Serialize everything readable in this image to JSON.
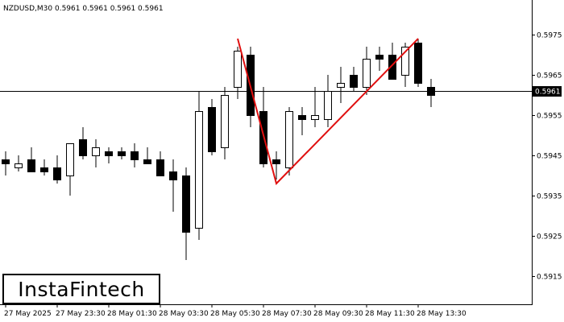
{
  "chart_data": {
    "type": "candlestick",
    "symbol_line": "NZDUSD,M30  0.5961 0.5961 0.5961 0.5961",
    "current_price": 0.5961,
    "current_price_label": "0.5961",
    "ylim": [
      0.5908,
      0.5983
    ],
    "yticks": [
      0.5975,
      0.5965,
      0.5955,
      0.5945,
      0.5935,
      0.5925,
      0.5915
    ],
    "ytick_labels": [
      "0.5975",
      "0.5965",
      "0.5955",
      "0.5945",
      "0.5935",
      "0.5925",
      "0.5915"
    ],
    "xtick_labels": [
      "27 May 2025",
      "27 May 23:30",
      "28 May 01:30",
      "28 May 03:30",
      "28 May 05:30",
      "28 May 07:30",
      "28 May 09:30",
      "28 May 11:30",
      "28 May 13:30"
    ],
    "xtick_bar_index": [
      0,
      4,
      8,
      12,
      16,
      20,
      24,
      28,
      32
    ],
    "candles": [
      [
        0.5944,
        0.5946,
        0.594,
        0.5943
      ],
      [
        0.5942,
        0.5945,
        0.5941,
        0.5943
      ],
      [
        0.5944,
        0.5947,
        0.5941,
        0.5941
      ],
      [
        0.5942,
        0.5944,
        0.594,
        0.5941
      ],
      [
        0.5942,
        0.5945,
        0.5938,
        0.5939
      ],
      [
        0.594,
        0.5948,
        0.5935,
        0.5948
      ],
      [
        0.5949,
        0.5952,
        0.5944,
        0.5945
      ],
      [
        0.5945,
        0.5949,
        0.5942,
        0.5947
      ],
      [
        0.5946,
        0.5947,
        0.5943,
        0.5945
      ],
      [
        0.5946,
        0.5947,
        0.5944,
        0.5945
      ],
      [
        0.5946,
        0.5948,
        0.5942,
        0.5944
      ],
      [
        0.5944,
        0.5947,
        0.5943,
        0.5943
      ],
      [
        0.5944,
        0.5946,
        0.594,
        0.594
      ],
      [
        0.5941,
        0.5944,
        0.5931,
        0.5939
      ],
      [
        0.594,
        0.5942,
        0.5919,
        0.5926
      ],
      [
        0.5927,
        0.5961,
        0.5924,
        0.5956
      ],
      [
        0.5957,
        0.5959,
        0.5945,
        0.5946
      ],
      [
        0.5947,
        0.5962,
        0.5944,
        0.596
      ],
      [
        0.5962,
        0.5972,
        0.5959,
        0.5971
      ],
      [
        0.597,
        0.5972,
        0.5952,
        0.5955
      ],
      [
        0.5956,
        0.5962,
        0.5942,
        0.5943
      ],
      [
        0.5944,
        0.5946,
        0.5939,
        0.5943
      ],
      [
        0.5942,
        0.5957,
        0.594,
        0.5956
      ],
      [
        0.5955,
        0.5957,
        0.595,
        0.5954
      ],
      [
        0.5954,
        0.5962,
        0.5952,
        0.5955
      ],
      [
        0.5954,
        0.5965,
        0.5952,
        0.5961
      ],
      [
        0.5962,
        0.5967,
        0.5958,
        0.5963
      ],
      [
        0.5965,
        0.5967,
        0.5961,
        0.5962
      ],
      [
        0.5962,
        0.5972,
        0.596,
        0.5969
      ],
      [
        0.597,
        0.5972,
        0.5966,
        0.5969
      ],
      [
        0.597,
        0.5973,
        0.5964,
        0.5964
      ],
      [
        0.5965,
        0.5973,
        0.5962,
        0.5972
      ],
      [
        0.5973,
        0.5974,
        0.5962,
        0.5963
      ],
      [
        0.5962,
        0.5964,
        0.5957,
        0.596
      ]
    ],
    "pattern_line": [
      {
        "bar": 18,
        "price": 0.5974
      },
      {
        "bar": 21,
        "price": 0.5938
      },
      {
        "bar": 32,
        "price": 0.5974
      }
    ],
    "colors": {
      "bull_body": "#ffffff",
      "bear_body": "#000000",
      "candle_outline": "#000000",
      "pattern_line": "#e01010",
      "price_line": "#000000",
      "price_tag_bg": "#000000",
      "price_tag_text": "#ffffff",
      "background": "#ffffff",
      "axis": "#000000"
    }
  },
  "logo": {
    "text": "InstaFintech"
  }
}
